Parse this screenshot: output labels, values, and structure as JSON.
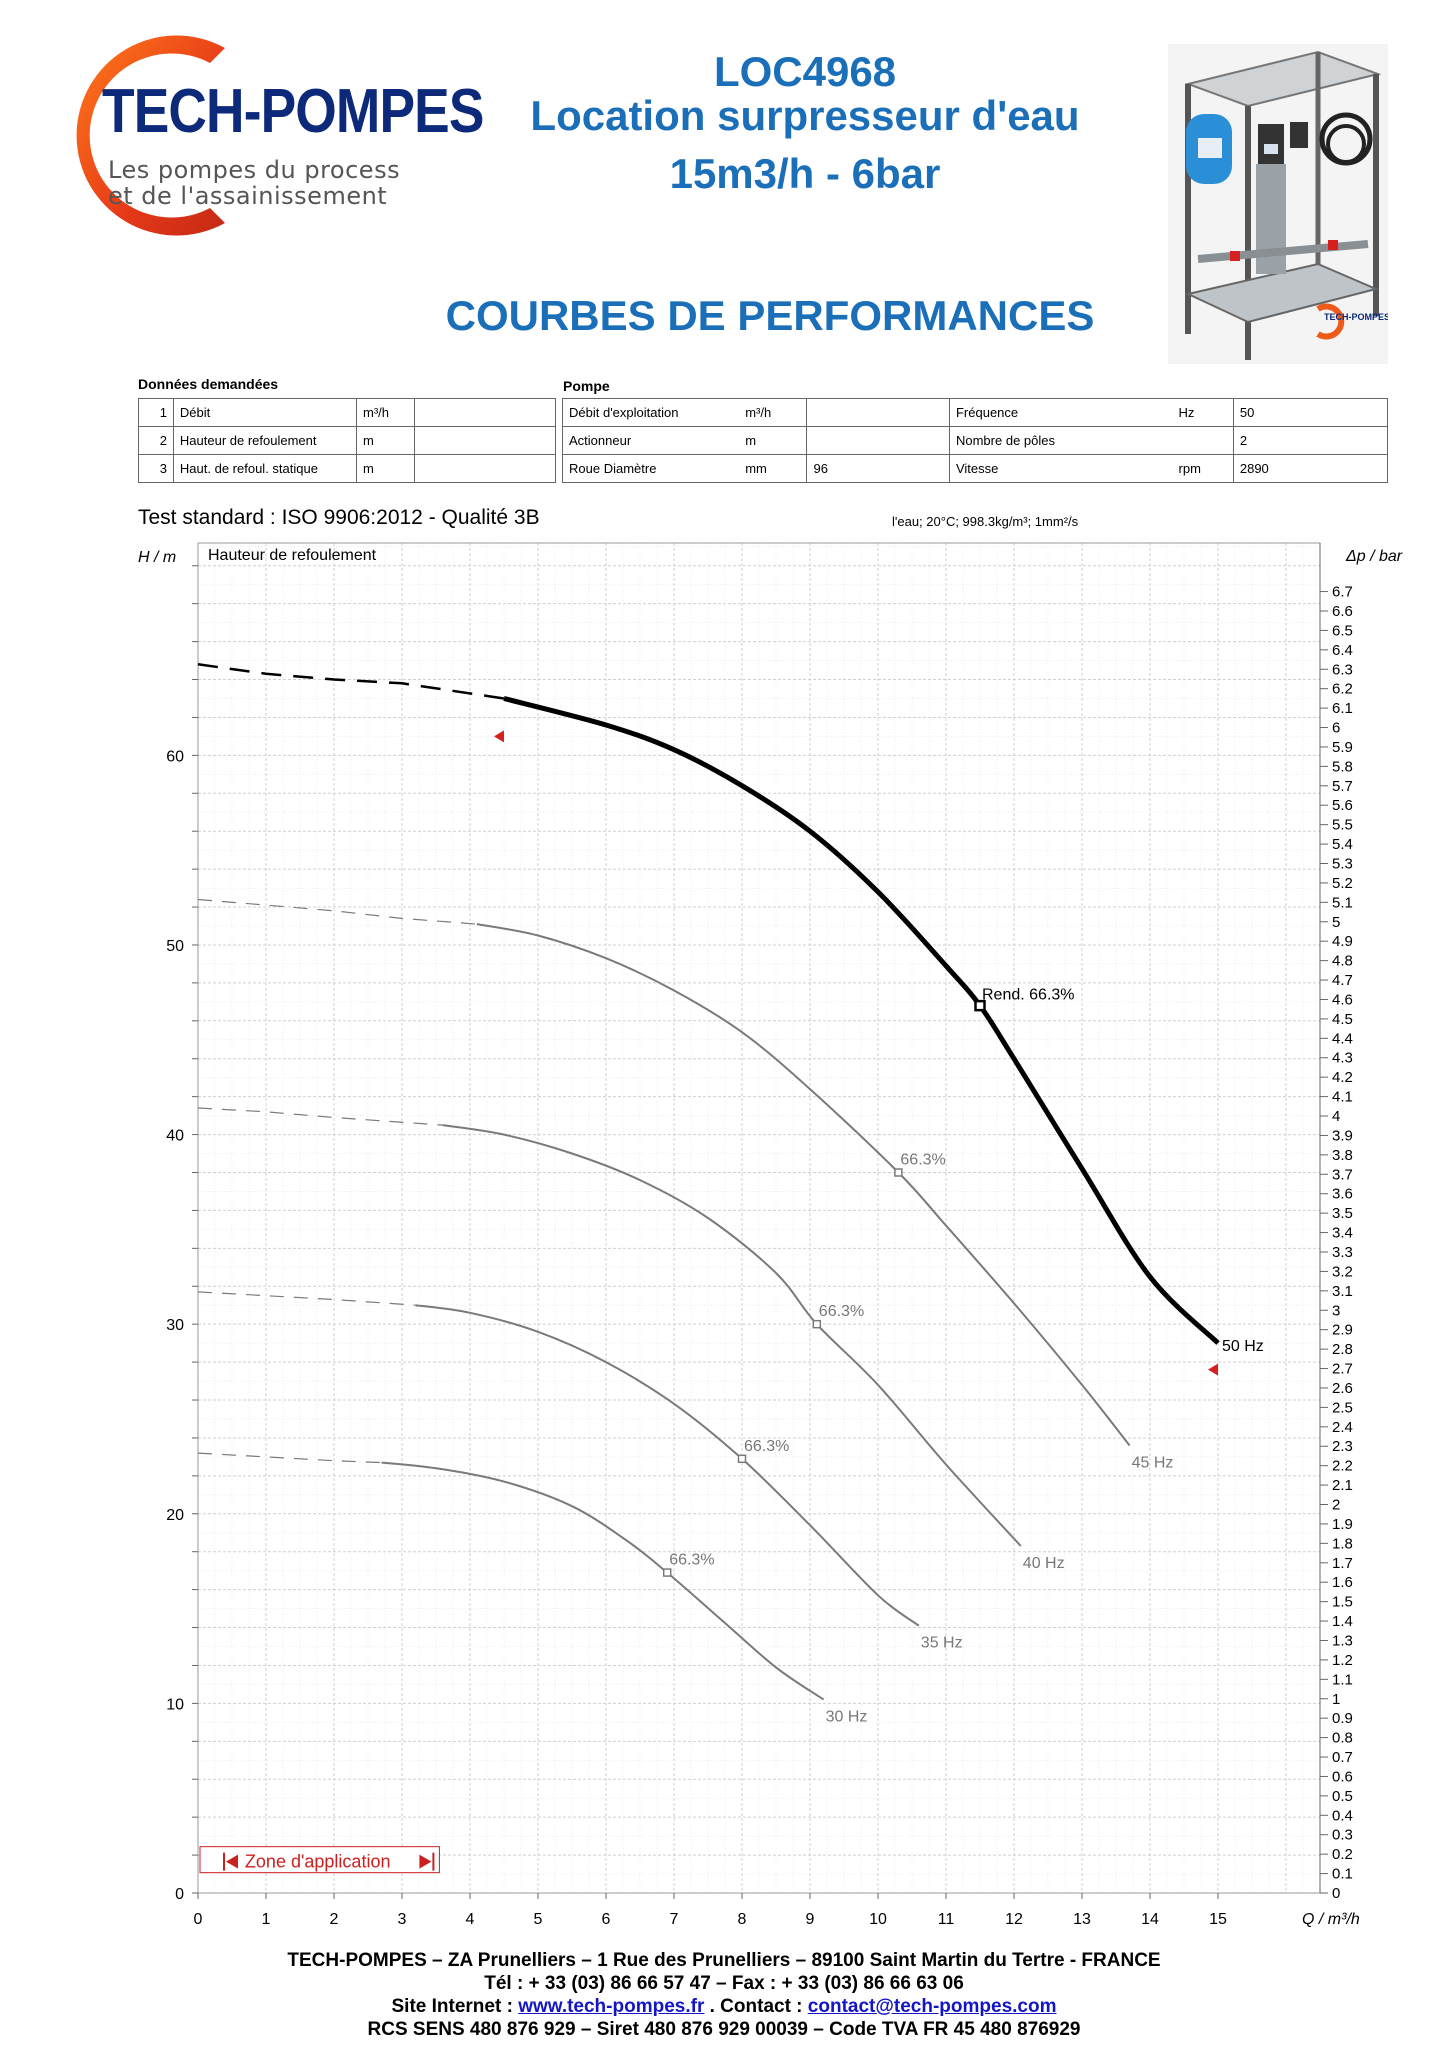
{
  "logo": {
    "brand": "TECH-POMPES",
    "tagline_1": "Les pompes du process",
    "tagline_2": "et de l'assainissement",
    "photo_badge": "TECH-POMPES"
  },
  "header": {
    "reference": "LOC4968",
    "subtitle": "Location surpresseur d'eau",
    "spec": "15m3/h - 6bar",
    "section_title": "COURBES DE PERFORMANCES"
  },
  "requested": {
    "title": "Données demandées",
    "rows": [
      {
        "num": "1",
        "label": "Débit",
        "unit": "m³/h",
        "value": ""
      },
      {
        "num": "2",
        "label": "Hauteur de refoulement",
        "unit": "m",
        "value": ""
      },
      {
        "num": "3",
        "label": "Haut. de refoul. statique",
        "unit": "m",
        "value": ""
      }
    ]
  },
  "pump": {
    "title": "Pompe",
    "rows": [
      {
        "label": "Débit d'exploitation",
        "unit": "m³/h",
        "value": "",
        "label2": "Fréquence",
        "unit2": "Hz",
        "value2": "50"
      },
      {
        "label": "Actionneur",
        "unit": "m",
        "value": "",
        "label2": "Nombre de pôles",
        "unit2": "",
        "value2": "2"
      },
      {
        "label": "Roue Diamètre",
        "unit": "mm",
        "value": "96",
        "label2": "Vitesse",
        "unit2": "rpm",
        "value2": "2890"
      }
    ]
  },
  "test": {
    "standard": "Test standard : ISO 9906:2012 - Qualité 3B",
    "fluid": "l'eau; 20°C; 998.3kg/m³; 1mm²/s"
  },
  "chart_data": {
    "type": "line",
    "title": "Hauteur de refoulement",
    "xlabel": "Q / m³/h",
    "ylabel": "H / m",
    "y2label": "Δp / bar",
    "xlim": [
      0,
      16.5
    ],
    "ylim": [
      0,
      71.2
    ],
    "y2lim": [
      0,
      6.95
    ],
    "xticks": [
      0,
      1,
      2,
      3,
      4,
      5,
      6,
      7,
      8,
      9,
      10,
      11,
      12,
      13,
      14,
      15
    ],
    "yticks": [
      0,
      10,
      20,
      30,
      40,
      50,
      60
    ],
    "y2ticks": [
      0,
      0.1,
      0.2,
      0.3,
      0.4,
      0.5,
      0.6,
      0.7,
      0.8,
      0.9,
      1,
      1.1,
      1.2,
      1.3,
      1.4,
      1.5,
      1.6,
      1.7,
      1.8,
      1.9,
      2,
      2.1,
      2.2,
      2.3,
      2.4,
      2.5,
      2.6,
      2.7,
      2.8,
      2.9,
      3,
      3.1,
      3.2,
      3.3,
      3.4,
      3.5,
      3.6,
      3.7,
      3.8,
      3.9,
      4,
      4.1,
      4.2,
      4.3,
      4.4,
      4.5,
      4.6,
      4.7,
      4.8,
      4.9,
      5,
      5.1,
      5.2,
      5.3,
      5.4,
      5.5,
      5.6,
      5.7,
      5.8,
      5.9,
      6,
      6.1,
      6.2,
      6.3,
      6.4,
      6.5,
      6.6,
      6.7
    ],
    "grid": true,
    "series": [
      {
        "name": "50 Hz",
        "color": "#000000",
        "main": true,
        "dashed": [
          [
            0,
            64.8
          ],
          [
            1,
            64.3
          ],
          [
            2,
            64.0
          ],
          [
            3,
            63.8
          ],
          [
            4.5,
            63.0
          ]
        ],
        "solid": [
          [
            4.5,
            63.0
          ],
          [
            6,
            61.6
          ],
          [
            7,
            60.3
          ],
          [
            8,
            58.4
          ],
          [
            9,
            56.0
          ],
          [
            10,
            52.8
          ],
          [
            11,
            48.9
          ],
          [
            11.5,
            46.8
          ],
          [
            12,
            44.0
          ],
          [
            13,
            38.2
          ],
          [
            14,
            32.5
          ],
          [
            15,
            29.0
          ]
        ],
        "bep": [
          11.5,
          46.8
        ],
        "bep_label": "Rend.  66.3%"
      },
      {
        "name": "45 Hz",
        "color": "#7a7a7a",
        "dashed": [
          [
            0,
            52.4
          ],
          [
            1,
            52.1
          ],
          [
            2,
            51.8
          ],
          [
            3,
            51.4
          ],
          [
            4.1,
            51.1
          ]
        ],
        "solid": [
          [
            4.1,
            51.1
          ],
          [
            5,
            50.5
          ],
          [
            6,
            49.3
          ],
          [
            7,
            47.6
          ],
          [
            8,
            45.4
          ],
          [
            9,
            42.4
          ],
          [
            10.3,
            38.0
          ],
          [
            11,
            35.2
          ],
          [
            12,
            31.1
          ],
          [
            13,
            26.8
          ],
          [
            13.7,
            23.6
          ]
        ],
        "bep": [
          10.3,
          38.0
        ],
        "bep_label": "66.3%"
      },
      {
        "name": "40 Hz",
        "color": "#7a7a7a",
        "dashed": [
          [
            0,
            41.4
          ],
          [
            1,
            41.2
          ],
          [
            2,
            40.9
          ],
          [
            3.6,
            40.5
          ]
        ],
        "solid": [
          [
            3.6,
            40.5
          ],
          [
            4.5,
            40.0
          ],
          [
            5.5,
            39.0
          ],
          [
            6.5,
            37.6
          ],
          [
            7.5,
            35.6
          ],
          [
            8.5,
            32.7
          ],
          [
            9.1,
            30.0
          ],
          [
            10,
            26.8
          ],
          [
            11,
            22.6
          ],
          [
            12.1,
            18.3
          ]
        ],
        "bep": [
          9.1,
          30.0
        ],
        "bep_label": "66.3%"
      },
      {
        "name": "35 Hz",
        "color": "#7a7a7a",
        "dashed": [
          [
            0,
            31.7
          ],
          [
            1,
            31.5
          ],
          [
            2,
            31.3
          ],
          [
            3.2,
            31.0
          ]
        ],
        "solid": [
          [
            3.2,
            31.0
          ],
          [
            4,
            30.6
          ],
          [
            5,
            29.6
          ],
          [
            6,
            28.0
          ],
          [
            7,
            25.8
          ],
          [
            8,
            22.9
          ],
          [
            9,
            19.4
          ],
          [
            10,
            15.7
          ],
          [
            10.6,
            14.1
          ]
        ],
        "bep": [
          8.0,
          22.9
        ],
        "bep_label": "66.3%"
      },
      {
        "name": "30 Hz",
        "color": "#7a7a7a",
        "dashed": [
          [
            0,
            23.2
          ],
          [
            1,
            23.0
          ],
          [
            2,
            22.8
          ],
          [
            2.7,
            22.7
          ]
        ],
        "solid": [
          [
            2.7,
            22.7
          ],
          [
            3.5,
            22.4
          ],
          [
            4.5,
            21.7
          ],
          [
            5.5,
            20.4
          ],
          [
            6.3,
            18.6
          ],
          [
            6.9,
            16.9
          ],
          [
            7.7,
            14.4
          ],
          [
            8.5,
            11.9
          ],
          [
            9.2,
            10.2
          ]
        ],
        "bep": [
          6.9,
          16.9
        ],
        "bep_label": "66.3%"
      }
    ],
    "markers": [
      {
        "x": 4.5,
        "y": 61.0,
        "dir": "left",
        "color": "#d62020"
      },
      {
        "x": 15.0,
        "y": 27.6,
        "dir": "left",
        "color": "#d62020"
      }
    ],
    "zone_label": "Zone d'application"
  },
  "footer": {
    "line1": "TECH-POMPES – ZA Prunelliers – 1 Rue des Prunelliers – 89100 Saint Martin du Tertre - FRANCE",
    "line2": "Tél : + 33 (03) 86 66 57 47 – Fax : + 33 (03) 86 66 63 06",
    "site_prefix": "Site Internet : ",
    "site_url": "www.tech-pompes.fr",
    "contact_prefix": " . Contact : ",
    "contact_email": "contact@tech-pompes.com",
    "line4": "RCS SENS 480 876 929 – Siret 480 876 929 00039 – Code TVA FR 45 480 876929"
  },
  "colors": {
    "brand_blue": "#1a6fb8",
    "logo_navy": "#0d2a7a",
    "logo_orange": "#e8431a",
    "marker_red": "#d62020"
  }
}
